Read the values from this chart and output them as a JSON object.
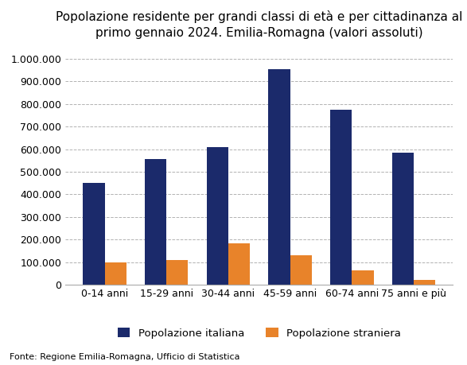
{
  "title": "Popolazione residente per grandi classi di età e per cittadinanza al\nprimo gennaio 2024. Emilia-Romagna (valori assoluti)",
  "categories": [
    "0-14 anni",
    "15-29 anni",
    "30-44 anni",
    "45-59 anni",
    "60-74 anni",
    "75 anni e più"
  ],
  "italiana": [
    450000,
    555000,
    610000,
    955000,
    775000,
    585000
  ],
  "straniera": [
    100000,
    110000,
    182000,
    132000,
    65000,
    20000
  ],
  "color_italiana": "#1b2a6b",
  "color_straniera": "#e8832a",
  "legend_italiana": "Popolazione italiana",
  "legend_straniera": "Popolazione straniera",
  "ylim": [
    0,
    1050000
  ],
  "yticks": [
    0,
    100000,
    200000,
    300000,
    400000,
    500000,
    600000,
    700000,
    800000,
    900000,
    1000000
  ],
  "footnote": "Fonte: Regione Emilia-Romagna, Ufficio di Statistica",
  "title_fontsize": 11,
  "tick_fontsize": 9,
  "legend_fontsize": 9.5,
  "footnote_fontsize": 8
}
